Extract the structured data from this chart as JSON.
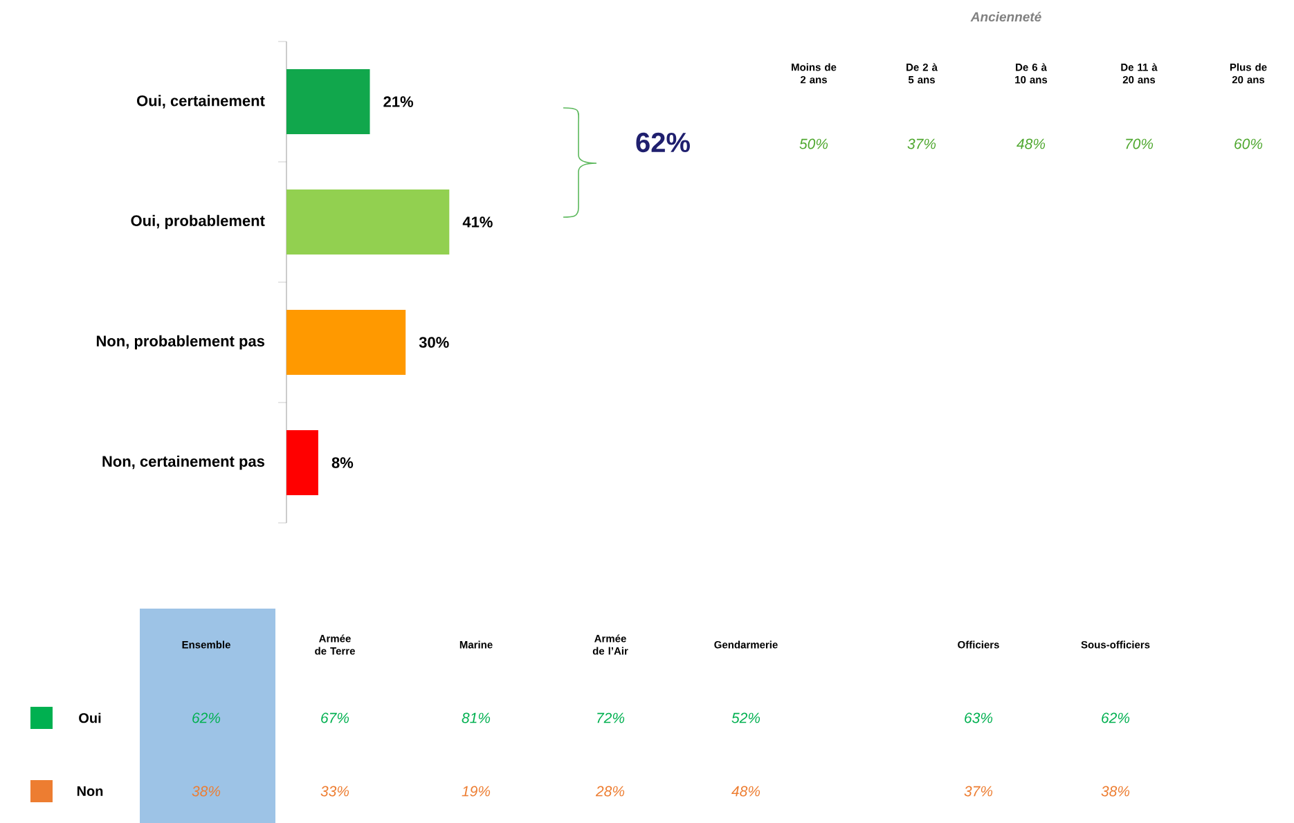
{
  "chart_data": [
    {
      "type": "bar",
      "orientation": "horizontal",
      "categories": [
        "Oui, certainement",
        "Oui, probablement",
        "Non, probablement pas",
        "Non, certainement pas"
      ],
      "values": [
        21,
        41,
        30,
        8
      ],
      "colors": [
        "#11a74c",
        "#92d050",
        "#ff9900",
        "#ff0000"
      ],
      "value_labels": [
        "21%",
        "41%",
        "30%",
        "8%"
      ],
      "annotations": [
        "62%"
      ]
    },
    {
      "type": "other",
      "title": "Ancienneté",
      "categories": [
        "Moins de 2 ans",
        "De 2 à 5 ans",
        "De 6 à 10 ans",
        "De 11 à 20 ans",
        "Plus de 20 ans"
      ],
      "cell_labels": [
        [
          "50%",
          "37%",
          "48%",
          "70%",
          "60%"
        ]
      ],
      "colors": [
        "#4ea72e"
      ]
    },
    {
      "type": "other",
      "categories": [
        "Ensemble",
        "Armée de Terre",
        "Marine",
        "Armée de l’Air",
        "Gendarmerie",
        "Officiers",
        "Sous-officiers"
      ],
      "y_categories": [
        "Oui",
        "Non"
      ],
      "cell_labels": [
        [
          "62%",
          "67%",
          "81%",
          "72%",
          "52%",
          "63%",
          "62%"
        ],
        [
          "38%",
          "33%",
          "19%",
          "28%",
          "48%",
          "37%",
          "38%"
        ]
      ],
      "colors": [
        "#00b050",
        "#ed7d31"
      ]
    }
  ]
}
